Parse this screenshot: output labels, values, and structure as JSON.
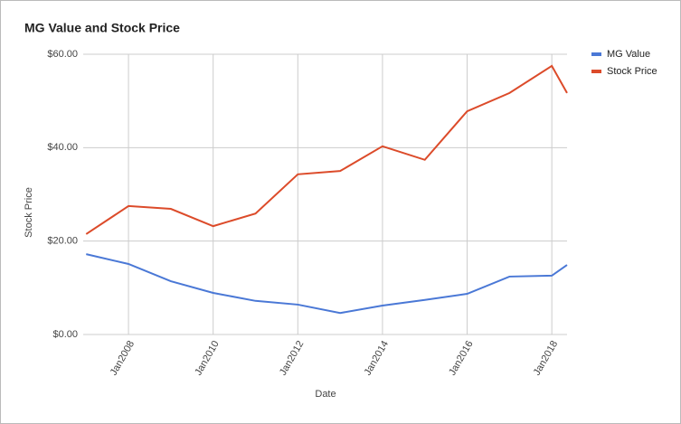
{
  "chart_data": {
    "type": "line",
    "title": "MG Value and Stock Price",
    "x_label": "Date",
    "y_label": "Stock Price",
    "x": [
      2007,
      2008,
      2009,
      2010,
      2011,
      2012,
      2013,
      2014,
      2015,
      2016,
      2017,
      2018,
      2018.36
    ],
    "series": [
      {
        "name": "MG Value",
        "color": "#4a78d6",
        "values": [
          17.2,
          15.1,
          11.4,
          8.9,
          7.2,
          6.4,
          4.6,
          6.2,
          7.4,
          8.7,
          12.4,
          12.6,
          14.9
        ]
      },
      {
        "name": "Stock Price",
        "color": "#dc4b2a",
        "values": [
          21.5,
          27.5,
          26.9,
          23.2,
          25.9,
          34.3,
          35.0,
          40.3,
          37.4,
          47.8,
          51.7,
          57.5,
          51.7
        ]
      }
    ],
    "xlim": [
      2006.93,
      2018.36
    ],
    "xticks": [
      {
        "value": 2008,
        "label": "Jan2008"
      },
      {
        "value": 2010,
        "label": "Jan2010"
      },
      {
        "value": 2012,
        "label": "Jan2012"
      },
      {
        "value": 2014,
        "label": "Jan2014"
      },
      {
        "value": 2016,
        "label": "Jan2016"
      },
      {
        "value": 2018,
        "label": "Jan2018"
      }
    ],
    "ylim": [
      0,
      60
    ],
    "yticks": [
      {
        "value": 0,
        "label": "$0.00"
      },
      {
        "value": 20,
        "label": "$20.00"
      },
      {
        "value": 40,
        "label": "$40.00"
      },
      {
        "value": 60,
        "label": "$60.00"
      }
    ],
    "grid": true,
    "legend": "right"
  }
}
